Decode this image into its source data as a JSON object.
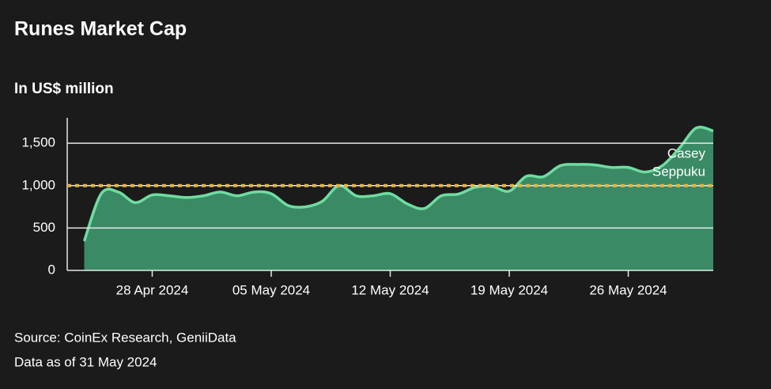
{
  "chart_data": {
    "type": "area",
    "title": "Runes Market Cap",
    "subtitle": "In US$ million",
    "source": "Source: CoinEx Research, GeniiData",
    "note": "Data as of 31 May 2024",
    "x": [
      "2024-04-24",
      "2024-04-25",
      "2024-04-26",
      "2024-04-27",
      "2024-04-28",
      "2024-04-29",
      "2024-04-30",
      "2024-05-01",
      "2024-05-02",
      "2024-05-03",
      "2024-05-04",
      "2024-05-05",
      "2024-05-06",
      "2024-05-07",
      "2024-05-08",
      "2024-05-09",
      "2024-05-10",
      "2024-05-11",
      "2024-05-12",
      "2024-05-13",
      "2024-05-14",
      "2024-05-15",
      "2024-05-16",
      "2024-05-17",
      "2024-05-18",
      "2024-05-19",
      "2024-05-20",
      "2024-05-21",
      "2024-05-22",
      "2024-05-23",
      "2024-05-24",
      "2024-05-25",
      "2024-05-26",
      "2024-05-27",
      "2024-05-28",
      "2024-05-29",
      "2024-05-30",
      "2024-05-31"
    ],
    "series": [
      {
        "name": "Runes market cap",
        "color": "#6fdca0",
        "fill": "#3a8a65",
        "values": [
          345,
          905,
          925,
          800,
          890,
          880,
          860,
          880,
          925,
          880,
          925,
          905,
          765,
          750,
          815,
          1000,
          880,
          880,
          905,
          785,
          730,
          880,
          900,
          980,
          990,
          935,
          1110,
          1105,
          1235,
          1250,
          1245,
          1215,
          1215,
          1160,
          1235,
          1440,
          1680,
          1645
        ]
      }
    ],
    "xlim": [
      "2024-04-23",
      "2024-05-31"
    ],
    "xticks": [
      {
        "value": "2024-04-28",
        "label": "28 Apr 2024"
      },
      {
        "value": "2024-05-05",
        "label": "05 May 2024"
      },
      {
        "value": "2024-05-12",
        "label": "12 May 2024"
      },
      {
        "value": "2024-05-19",
        "label": "19 May 2024"
      },
      {
        "value": "2024-05-26",
        "label": "26 May 2024"
      }
    ],
    "ylim": [
      0,
      1800
    ],
    "yticks": [
      0,
      500,
      {
        "value": 1000,
        "label": "1,000"
      },
      {
        "value": 1500,
        "label": "1,500"
      }
    ],
    "grid": true,
    "reference_line": {
      "value": 1000,
      "color": "#e8b43c",
      "label_lines": [
        "Casey",
        "Seppuku"
      ]
    }
  }
}
